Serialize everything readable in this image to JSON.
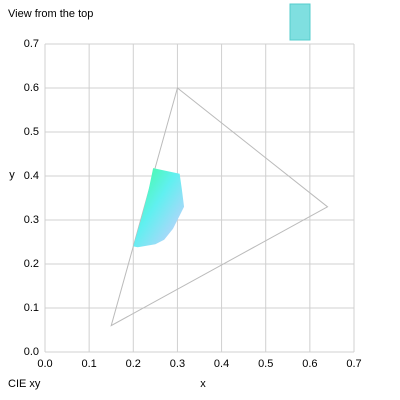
{
  "chart_data": {
    "type": "scatter",
    "title": "View from the top",
    "caption": "CIE xy",
    "x_label": "x",
    "y_label": "y",
    "xlim": [
      0,
      0.7
    ],
    "ylim": [
      0,
      0.7
    ],
    "xticks": [
      {
        "value": 0,
        "label": "0.0"
      },
      0.1,
      0.2,
      0.3,
      0.4,
      0.5,
      0.6,
      0.7
    ],
    "yticks": [
      {
        "value": 0,
        "label": "0.0"
      },
      0.1,
      0.2,
      0.3,
      0.4,
      0.5,
      0.6,
      0.7
    ],
    "grid": true,
    "series": [
      {
        "color": "#bbbbbb",
        "x": [
          0.64,
          0.3,
          0.15
        ],
        "values": [
          0.33,
          0.6,
          0.06
        ]
      },
      {
        "x": [
          0.245,
          0.305,
          0.31,
          0.315,
          0.305,
          0.29,
          0.27,
          0.25,
          0.21,
          0.2,
          0.22,
          0.235
        ],
        "values": [
          0.418,
          0.405,
          0.37,
          0.33,
          0.31,
          0.28,
          0.255,
          0.245,
          0.238,
          0.24,
          0.31,
          0.37
        ]
      }
    ]
  }
}
